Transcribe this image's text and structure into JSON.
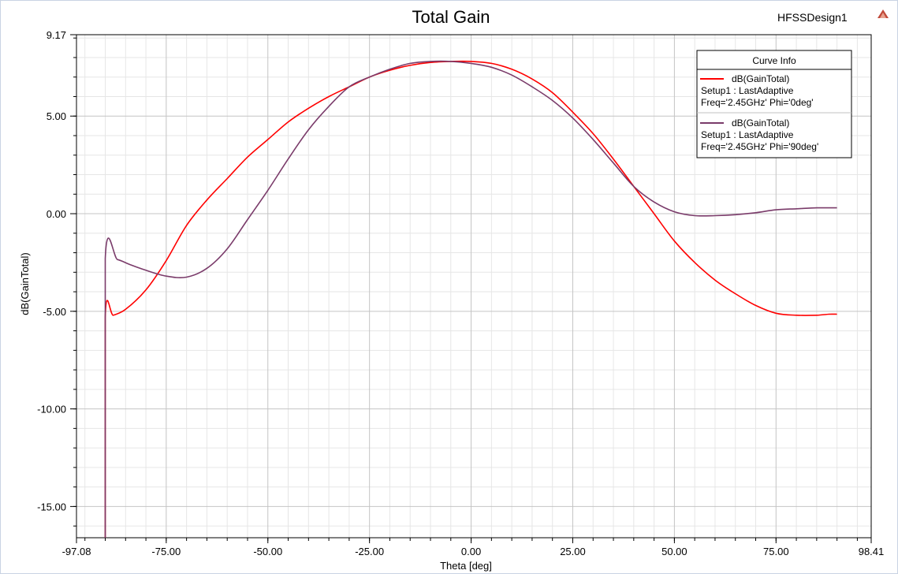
{
  "design_name": "HFSSDesign1",
  "chart_data": {
    "type": "line",
    "title": "Total Gain",
    "xlabel": "Theta [deg]",
    "ylabel": "dB(GainTotal)",
    "xlim": [
      -97.08,
      98.41
    ],
    "ylim": [
      -16.6,
      9.17
    ],
    "x_ticks": [
      -97.08,
      -75.0,
      -50.0,
      -25.0,
      0.0,
      25.0,
      50.0,
      75.0,
      98.41
    ],
    "x_tick_labels": [
      "-97.08",
      "-75.00",
      "-50.00",
      "-25.00",
      "0.00",
      "25.00",
      "50.00",
      "75.00",
      "98.41"
    ],
    "y_ticks": [
      9.17,
      5.0,
      0.0,
      -5.0,
      -10.0,
      -15.0
    ],
    "y_tick_labels": [
      "9.17",
      "5.00",
      "0.00",
      "-5.00",
      "-10.00",
      "-15.00"
    ],
    "grid": true,
    "legend": {
      "title": "Curve Info",
      "position": "top-right",
      "entries": [
        {
          "name": "dB(GainTotal)",
          "line2": "Setup1 : LastAdaptive",
          "line3": "Freq='2.45GHz' Phi='0deg'"
        },
        {
          "name": "dB(GainTotal)",
          "line2": "Setup1 : LastAdaptive",
          "line3": "Freq='2.45GHz' Phi='90deg'"
        }
      ]
    },
    "series": [
      {
        "name": "dB(GainTotal)",
        "color": "#ff0000",
        "x": [
          -90,
          -90,
          -88,
          -85,
          -80,
          -75,
          -70,
          -65,
          -60,
          -55,
          -50,
          -45,
          -40,
          -35,
          -30,
          -25,
          -20,
          -15,
          -10,
          -5,
          0,
          5,
          10,
          15,
          20,
          25,
          30,
          35,
          40,
          45,
          50,
          55,
          60,
          65,
          70,
          75,
          80,
          85,
          88,
          90
        ],
        "y": [
          -16.6,
          -5.3,
          -5.2,
          -4.9,
          -3.9,
          -2.4,
          -0.6,
          0.7,
          1.8,
          2.9,
          3.8,
          4.7,
          5.4,
          6.0,
          6.5,
          7.0,
          7.35,
          7.6,
          7.75,
          7.8,
          7.8,
          7.7,
          7.4,
          6.9,
          6.2,
          5.2,
          4.1,
          2.8,
          1.4,
          0.0,
          -1.4,
          -2.5,
          -3.4,
          -4.1,
          -4.7,
          -5.1,
          -5.2,
          -5.2,
          -5.15,
          -5.15
        ]
      },
      {
        "name": "dB(GainTotal)",
        "color": "#7a3b6a",
        "x": [
          -90,
          -90,
          -87,
          -84,
          -80,
          -75,
          -70,
          -65,
          -60,
          -55,
          -50,
          -45,
          -40,
          -35,
          -30,
          -25,
          -20,
          -15,
          -10,
          -5,
          0,
          5,
          10,
          15,
          20,
          25,
          30,
          35,
          40,
          45,
          50,
          55,
          60,
          65,
          70,
          75,
          80,
          85,
          88,
          90
        ],
        "y": [
          -16.6,
          -2.3,
          -2.35,
          -2.6,
          -2.9,
          -3.2,
          -3.25,
          -2.8,
          -1.8,
          -0.3,
          1.2,
          2.8,
          4.3,
          5.5,
          6.5,
          7.0,
          7.4,
          7.7,
          7.8,
          7.8,
          7.7,
          7.5,
          7.1,
          6.5,
          5.8,
          4.9,
          3.8,
          2.6,
          1.4,
          0.6,
          0.1,
          -0.1,
          -0.1,
          -0.05,
          0.05,
          0.2,
          0.25,
          0.3,
          0.3,
          0.3
        ]
      }
    ]
  }
}
